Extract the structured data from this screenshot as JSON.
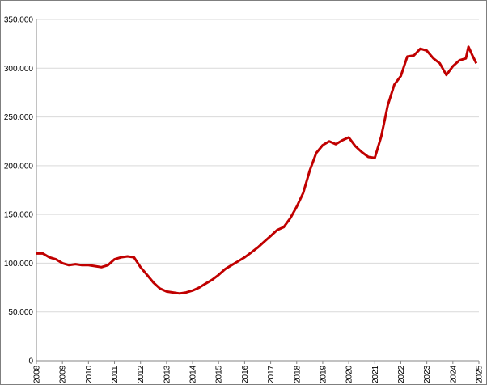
{
  "chart_data": {
    "type": "line",
    "x": [
      2008,
      2008.25,
      2008.5,
      2008.75,
      2009,
      2009.25,
      2009.5,
      2009.75,
      2010,
      2010.25,
      2010.5,
      2010.75,
      2011,
      2011.25,
      2011.5,
      2011.75,
      2012,
      2012.25,
      2012.5,
      2012.75,
      2013,
      2013.25,
      2013.5,
      2013.75,
      2014,
      2014.25,
      2014.5,
      2014.75,
      2015,
      2015.25,
      2015.5,
      2015.75,
      2016,
      2016.25,
      2016.5,
      2016.75,
      2017,
      2017.25,
      2017.5,
      2017.75,
      2018,
      2018.25,
      2018.5,
      2018.75,
      2019,
      2019.25,
      2019.5,
      2019.75,
      2020,
      2020.25,
      2020.5,
      2020.75,
      2021,
      2021.25,
      2021.5,
      2021.75,
      2022,
      2022.25,
      2022.5,
      2022.75,
      2023,
      2023.25,
      2023.5,
      2023.75,
      2024,
      2024.25,
      2024.5,
      2024.6,
      2024.75,
      2024.9
    ],
    "series": [
      {
        "color": "#c00000",
        "values": [
          110000,
          110000,
          106000,
          104000,
          100000,
          98000,
          99000,
          98000,
          98000,
          97000,
          96000,
          98000,
          104000,
          106000,
          107000,
          106000,
          96000,
          88000,
          80000,
          74000,
          71000,
          70000,
          69000,
          70000,
          72000,
          75000,
          79000,
          83000,
          88000,
          94000,
          98000,
          102000,
          106000,
          111000,
          116000,
          122000,
          128000,
          134000,
          137000,
          146000,
          158000,
          172000,
          195000,
          213000,
          221000,
          225000,
          222000,
          226000,
          229000,
          220000,
          214000,
          209000,
          208000,
          230000,
          262000,
          283000,
          292000,
          312000,
          313000,
          320000,
          318000,
          310000,
          305000,
          293000,
          302000,
          308000,
          310000,
          322000,
          313000,
          305000
        ]
      }
    ],
    "xlim": [
      2008,
      2025
    ],
    "xticks": [
      2008,
      2009,
      2010,
      2011,
      2012,
      2013,
      2014,
      2015,
      2016,
      2017,
      2018,
      2019,
      2020,
      2021,
      2022,
      2023,
      2024,
      2025
    ],
    "ylim": [
      0,
      350000
    ],
    "yticks": [
      0,
      {
        "value": 50000,
        "label": "50.000"
      },
      {
        "value": 100000,
        "label": "100.000"
      },
      {
        "value": 150000,
        "label": "150.000"
      },
      {
        "value": 200000,
        "label": "200.000"
      },
      {
        "value": 250000,
        "label": "250.000"
      },
      {
        "value": 300000,
        "label": "300.000"
      },
      {
        "value": 350000,
        "label": "350.000"
      }
    ],
    "grid": true
  }
}
